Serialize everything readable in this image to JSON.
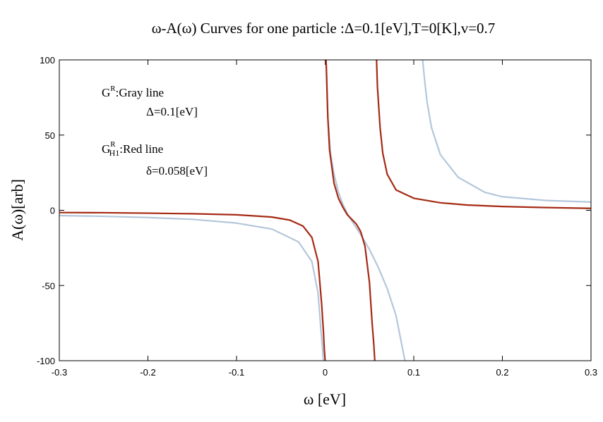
{
  "chart_data": {
    "type": "line",
    "title": "ω-A(ω) Curves for one particle :Δ=0.1[eV],T=0[K],v=0.7",
    "xlabel": "ω [eV]",
    "ylabel": "A(ω)[arb]",
    "xlim": [
      -0.3,
      0.3
    ],
    "ylim": [
      -100,
      100
    ],
    "xticks": [
      "-0.3",
      "-0.2",
      "-0.1",
      "0",
      "0.1",
      "0.2",
      "0.3"
    ],
    "yticks": [
      "-100",
      "-50",
      "0",
      "50",
      "100"
    ],
    "grid": false,
    "legend": {
      "gray_label": "G",
      "gray_sup": "R",
      "gray_text": ":Gray line",
      "gray_param": "Δ=0.1[eV]",
      "red_label": "G",
      "red_sup": "R",
      "red_sub": "H1",
      "red_text": ":Red line",
      "red_param": "δ=0.058[eV]"
    },
    "series": [
      {
        "color": "#b3c7db",
        "x": [
          -0.3,
          -0.25,
          -0.2,
          -0.15,
          -0.1,
          -0.06,
          -0.03,
          -0.015,
          -0.008,
          -0.005,
          -0.003,
          -0.002,
          0.001,
          0.003,
          0.006,
          0.01,
          0.015,
          0.02,
          0.025,
          0.03,
          0.04,
          0.05,
          0.06,
          0.07,
          0.08,
          0.086,
          0.089,
          0.09,
          0.11,
          0.112,
          0.115,
          0.12,
          0.13,
          0.15,
          0.18,
          0.2,
          0.25,
          0.3
        ],
        "y": [
          -3.5,
          -4.0,
          -4.8,
          -6.0,
          -8.5,
          -12.5,
          -21.0,
          -34.0,
          -55.0,
          -78.0,
          -92.0,
          -100.0,
          100.0,
          62.0,
          38.0,
          24.0,
          12.0,
          4.0,
          -2.0,
          -7.0,
          -16.0,
          -26.0,
          -38.0,
          -52.0,
          -70.0,
          -88.0,
          -97.0,
          -100.0,
          100.0,
          88.0,
          72.0,
          55.0,
          37.0,
          22.0,
          12.0,
          9.0,
          6.5,
          5.5
        ]
      },
      {
        "color": "#a52a14",
        "x": [
          -0.3,
          -0.25,
          -0.2,
          -0.15,
          -0.1,
          -0.06,
          -0.04,
          -0.025,
          -0.015,
          -0.008,
          -0.004,
          -0.002,
          -0.001,
          0.0,
          0.001,
          0.0015,
          0.003,
          0.005,
          0.01,
          0.015,
          0.02,
          0.025,
          0.03,
          0.035,
          0.04,
          0.045,
          0.05,
          0.053,
          0.055,
          0.056,
          0.058,
          0.059,
          0.062,
          0.065,
          0.07,
          0.08,
          0.1,
          0.13,
          0.16,
          0.2,
          0.25,
          0.3
        ],
        "y": [
          -1.5,
          -1.6,
          -1.9,
          -2.3,
          -3.0,
          -4.5,
          -6.5,
          -10.5,
          -18.0,
          -34.0,
          -62.0,
          -80.0,
          -92.0,
          -100.0,
          100.0,
          92.0,
          62.0,
          40.0,
          18.0,
          8.0,
          2.0,
          -3.0,
          -6.0,
          -9.0,
          -14.0,
          -24.0,
          -48.0,
          -75.0,
          -90.0,
          -100.0,
          100.0,
          82.0,
          55.0,
          38.0,
          24.0,
          13.5,
          8.0,
          5.0,
          3.5,
          2.5,
          1.8,
          1.3
        ]
      }
    ]
  }
}
